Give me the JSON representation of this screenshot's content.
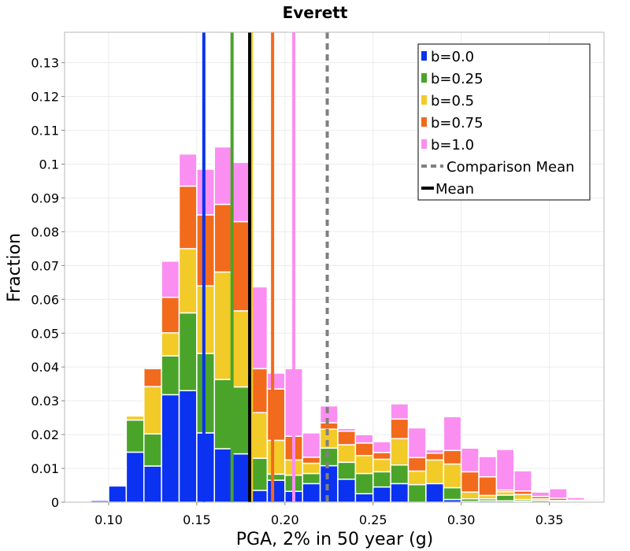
{
  "chart_data": {
    "type": "bar",
    "stacked": true,
    "title": "Everett",
    "xlabel": "PGA, 2% in 50 year (g)",
    "ylabel": "Fraction",
    "xlim": [
      0.075,
      0.381
    ],
    "ylim": [
      0,
      0.139
    ],
    "grid": true,
    "legend_position": "top-right",
    "x_ticks": [
      0.1,
      0.15,
      0.2,
      0.25,
      0.3,
      0.35
    ],
    "x_tick_labels": [
      "0.10",
      "0.15",
      "0.20",
      "0.25",
      "0.30",
      "0.35"
    ],
    "y_ticks": [
      0,
      0.01,
      0.02,
      0.03,
      0.04,
      0.05,
      0.06,
      0.07,
      0.08,
      0.09,
      0.1,
      0.11,
      0.12,
      0.13
    ],
    "y_tick_labels": [
      "0",
      "0.01",
      "0.02",
      "0.03",
      "0.04",
      "0.05",
      "0.06",
      "0.07",
      "0.08",
      "0.09",
      "0.1",
      "0.11",
      "0.12",
      "0.13"
    ],
    "bin_width": 0.01,
    "bin_starts": [
      0.08,
      0.09,
      0.1,
      0.11,
      0.12,
      0.13,
      0.14,
      0.15,
      0.16,
      0.17,
      0.18,
      0.19,
      0.2,
      0.21,
      0.22,
      0.23,
      0.24,
      0.25,
      0.26,
      0.27,
      0.28,
      0.29,
      0.3,
      0.31,
      0.32,
      0.33,
      0.34,
      0.35,
      0.36,
      0.37
    ],
    "series": [
      {
        "name": "b=0.0",
        "color": "#0a32f0",
        "mean": 0.154,
        "values": [
          0.0003,
          0.0005,
          0.0048,
          0.0148,
          0.0107,
          0.0318,
          0.033,
          0.0205,
          0.0158,
          0.0143,
          0.0035,
          0.0065,
          0.0032,
          0.0055,
          0.0108,
          0.0068,
          0.0025,
          0.0045,
          0.0055,
          0,
          0.0055,
          0.0008,
          0.0002,
          0.0004,
          0.0004,
          0.0003,
          0,
          0,
          0,
          0
        ]
      },
      {
        "name": "b=0.25",
        "color": "#4aa42a",
        "mean": 0.17,
        "values": [
          0,
          0,
          0,
          0.0095,
          0.0095,
          0.0115,
          0.023,
          0.0235,
          0.0205,
          0.0198,
          0.0095,
          0.0018,
          0.0048,
          0.003,
          0.0052,
          0.005,
          0.006,
          0.0045,
          0.0055,
          0.0052,
          0,
          0.0035,
          0.0008,
          0.0006,
          0.0017,
          0.0005,
          0.0005,
          0.0002,
          0,
          0
        ]
      },
      {
        "name": "b=0.5",
        "color": "#f2cb28",
        "mean": 0.181,
        "values": [
          0,
          0,
          0,
          0.0012,
          0.014,
          0.0068,
          0.019,
          0.02,
          0.0318,
          0.0225,
          0.0135,
          0.01,
          0.0045,
          0.003,
          0.0056,
          0.0052,
          0.0053,
          0.0037,
          0.0078,
          0.004,
          0.007,
          0.007,
          0.002,
          0.001,
          0.001,
          0.0015,
          0.0005,
          0.0003,
          0.0003,
          0.0002
        ]
      },
      {
        "name": "b=0.75",
        "color": "#f26a1c",
        "mean": 0.193,
        "values": [
          0,
          0,
          0,
          0,
          0.0053,
          0.0105,
          0.0185,
          0.021,
          0.02,
          0.0264,
          0.013,
          0.0152,
          0.007,
          0.0018,
          0.0019,
          0.004,
          0.0037,
          0.002,
          0.0058,
          0.004,
          0.002,
          0.004,
          0.006,
          0.0055,
          0.0005,
          0.001,
          0.0007,
          0.0007,
          0.0003,
          0.0003
        ]
      },
      {
        "name": "b=1.0",
        "color": "#fb8ef1",
        "mean": 0.205,
        "values": [
          0,
          0,
          0,
          0,
          0,
          0.0107,
          0.0095,
          0.0135,
          0.017,
          0.0175,
          0.0242,
          0.0047,
          0.02,
          0.0072,
          0.005,
          0.0008,
          0.0025,
          0.0032,
          0.0045,
          0.0088,
          0.001,
          0.01,
          0.007,
          0.006,
          0.012,
          0.006,
          0.0013,
          0.0028,
          0.0008,
          0.0004
        ]
      }
    ],
    "mean": {
      "label": "Mean",
      "value": 0.18,
      "color": "#000000"
    },
    "comparison_mean": {
      "label": "Comparison Mean",
      "value": 0.224,
      "color": "#808080"
    }
  }
}
